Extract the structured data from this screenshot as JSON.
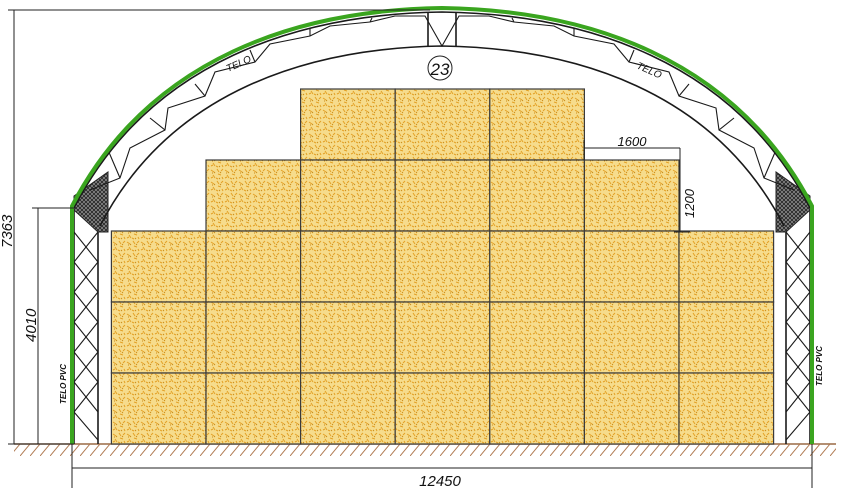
{
  "drawing": {
    "detail_number": "23",
    "covering_labels": {
      "arc_left": "TELO",
      "arc_right": "TELO",
      "wall_left": "TELO PVC",
      "wall_right": "TELO PVC"
    },
    "dimensions": {
      "total_height": "7363",
      "wall_height": "4010",
      "total_width": "12450",
      "bale_width": "1600",
      "bale_height": "1200"
    },
    "bale_stack_rows_top_to_bottom": [
      3,
      5,
      7,
      7,
      7
    ],
    "colors": {
      "cover_green": "#3aa51f",
      "bale_fill": "#f3d27a",
      "bale_speckle": "#e8a21a",
      "ground_hatch": "#b07a52"
    }
  }
}
